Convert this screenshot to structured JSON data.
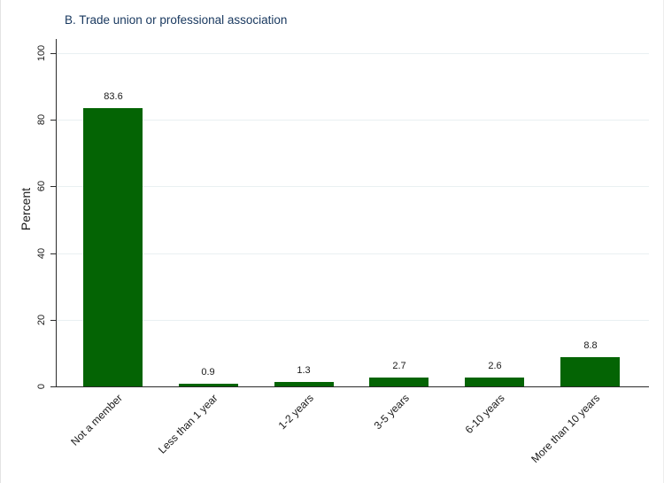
{
  "chart_data": {
    "type": "bar",
    "title": "B. Trade union or professional association",
    "ylabel": "Percent",
    "xlabel": "",
    "categories": [
      "Not a member",
      "Less than 1 year",
      "1-2 years",
      "3-5 years",
      "6-10 years",
      "More than 10 years"
    ],
    "values": [
      83.6,
      0.9,
      1.3,
      2.7,
      2.6,
      8.8
    ],
    "value_labels": [
      "83.6",
      "0.9",
      "1.3",
      "2.7",
      "2.6",
      "8.8"
    ],
    "yticks": [
      0,
      20,
      40,
      60,
      80,
      100
    ],
    "ylim": [
      0,
      100
    ],
    "grid": true,
    "legend": "none",
    "x_tick_label_angle": 45,
    "bar_color": "#046404",
    "gridline_color": "#e9f0f2",
    "axis_color": "#2b2b2b",
    "title_color": "#17375e",
    "text_color": "#1a1a1a"
  }
}
